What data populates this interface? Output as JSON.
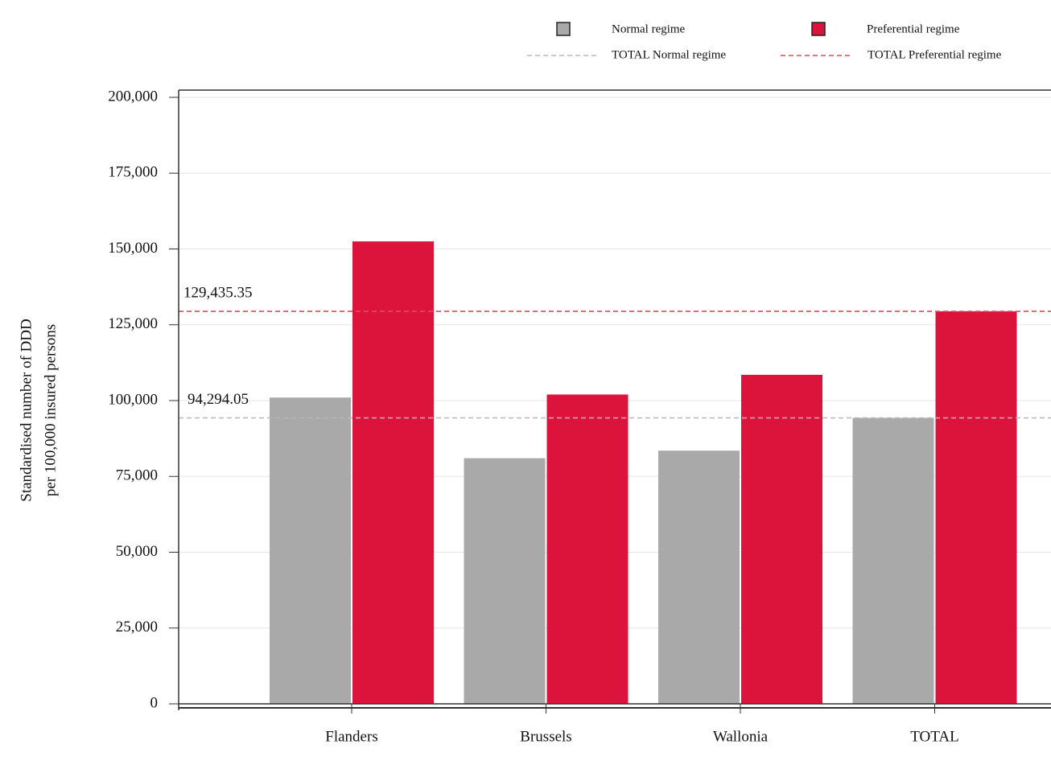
{
  "chart_data": {
    "type": "bar",
    "y_label": [
      "Standardised number of DDD",
      "per 100,000 insured persons"
    ],
    "categories": [
      "Flanders",
      "Brussels",
      "Wallonia",
      "TOTAL"
    ],
    "series": [
      {
        "name": "Normal regime",
        "color": "#a9a9a9",
        "values": [
          101000,
          81000,
          83500,
          94294.05
        ]
      },
      {
        "name": "Preferential regime",
        "color": "#dc143c",
        "values": [
          152500,
          102000,
          108500,
          129435.35
        ]
      }
    ],
    "reference_lines": [
      {
        "name": "TOTAL Normal regime",
        "color": "#b8b8b8",
        "value": 94294.05,
        "label": "94,294.05"
      },
      {
        "name": "TOTAL Preferential regime",
        "color": "#e8455f",
        "value": 129435.35,
        "label": "129,435.35"
      }
    ],
    "ylim": [
      0,
      200000
    ],
    "yticks": [
      0,
      {
        "value": 25000,
        "label": "25,000"
      },
      {
        "value": 50000,
        "label": "50,000"
      },
      {
        "value": 75000,
        "label": "75,000"
      },
      {
        "value": 100000,
        "label": "100,000"
      },
      {
        "value": 125000,
        "label": "125,000"
      },
      {
        "value": 150000,
        "label": "150,000"
      },
      {
        "value": 175000,
        "label": "175,000"
      },
      {
        "value": 200000,
        "label": "200,000"
      }
    ],
    "grid": true
  }
}
